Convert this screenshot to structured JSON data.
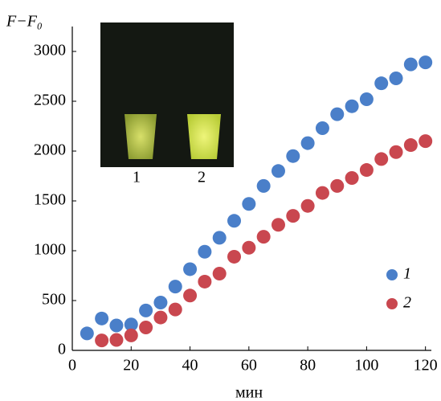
{
  "chart_data": {
    "type": "scatter",
    "y_label": "F−F₀",
    "x_label": "мин",
    "inset_labels": [
      "1",
      "2"
    ],
    "xlim": [
      0,
      122
    ],
    "xticks": [
      0,
      20,
      40,
      60,
      80,
      100,
      120
    ],
    "ylim": [
      0,
      3250
    ],
    "yticks": [
      0,
      500,
      1000,
      1500,
      2000,
      2500,
      3000
    ],
    "legend": "right",
    "series": [
      {
        "name": "1",
        "color": "#4a7fc9",
        "x": [
          5,
          10,
          15,
          20,
          25,
          30,
          35,
          40,
          45,
          50,
          55,
          60,
          65,
          70,
          75,
          80,
          85,
          90,
          95,
          100,
          105,
          110,
          115,
          120
        ],
        "values": [
          170,
          320,
          250,
          260,
          400,
          480,
          640,
          815,
          990,
          1130,
          1300,
          1470,
          1650,
          1800,
          1950,
          2080,
          2230,
          2370,
          2450,
          2520,
          2680,
          2730,
          2870,
          2890
        ]
      },
      {
        "name": "2",
        "color": "#c9474f",
        "x": [
          10,
          15,
          20,
          25,
          30,
          35,
          40,
          45,
          50,
          55,
          60,
          65,
          70,
          75,
          80,
          85,
          90,
          95,
          100,
          105,
          110,
          115,
          120
        ],
        "values": [
          100,
          105,
          150,
          230,
          330,
          410,
          550,
          690,
          770,
          940,
          1030,
          1140,
          1260,
          1350,
          1450,
          1580,
          1650,
          1730,
          1810,
          1920,
          1990,
          2060,
          2100
        ]
      }
    ]
  }
}
